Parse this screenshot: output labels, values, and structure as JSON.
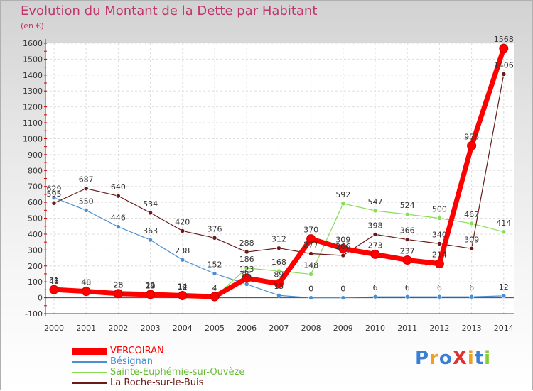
{
  "chart_data": {
    "type": "line",
    "title": "Evolution du Montant de la Dette par Habitant",
    "subtitle": "(en €)",
    "x": [
      "2000",
      "2001",
      "2002",
      "2003",
      "2004",
      "2005",
      "2006",
      "2007",
      "2008",
      "2009",
      "2010",
      "2011",
      "2012",
      "2013",
      "2014"
    ],
    "ylim": [
      -100,
      1600
    ],
    "yticks": [
      -100,
      0,
      100,
      200,
      300,
      400,
      500,
      600,
      700,
      800,
      900,
      1000,
      1100,
      1200,
      1300,
      1400,
      1500,
      1600
    ],
    "grid": true,
    "legend_position": "bottom-left",
    "series": [
      {
        "name": "VERCOIRAN",
        "color": "#ff0000",
        "values": [
          51,
          40,
          26,
          21,
          14,
          7,
          123,
          89,
          370,
          309,
          273,
          237,
          214,
          956,
          1568
        ],
        "labels": [
          "51",
          "40",
          "26",
          "21",
          "14",
          "7",
          "123",
          "89",
          "370",
          "309",
          "273",
          "237",
          "214",
          "956",
          "1568"
        ]
      },
      {
        "name": "Bésignan",
        "color": "#4a8fd0",
        "values": [
          629,
          550,
          446,
          363,
          238,
          152,
          85,
          15,
          0,
          0,
          6,
          6,
          6,
          6,
          12
        ],
        "labels": [
          "629",
          "550",
          "446",
          "363",
          "238",
          "152",
          "85",
          "15",
          "0",
          "0",
          "6",
          "6",
          "6",
          "6",
          "12"
        ]
      },
      {
        "name": "Sainte-Euphémie-sur-Ouvèze",
        "color": "#88dd55",
        "values": [
          48,
          38,
          23,
          19,
          12,
          4,
          186,
          168,
          148,
          592,
          547,
          524,
          500,
          467,
          414
        ],
        "labels": [
          "48",
          "38",
          "23",
          "19",
          "12",
          "4",
          "186",
          "168",
          "148",
          "592",
          "547",
          "524",
          "500",
          "467",
          "414"
        ]
      },
      {
        "name": "La Roche-sur-le-Buis",
        "color": "#6b1a1a",
        "values": [
          595,
          687,
          640,
          534,
          420,
          376,
          288,
          312,
          277,
          266,
          398,
          366,
          340,
          309,
          1406
        ],
        "labels": [
          "595",
          "687",
          "640",
          "534",
          "420",
          "376",
          "288",
          "312",
          "277",
          "266",
          "398",
          "366",
          "340",
          "309",
          "1406"
        ]
      }
    ]
  },
  "watermark": "ProXiti"
}
